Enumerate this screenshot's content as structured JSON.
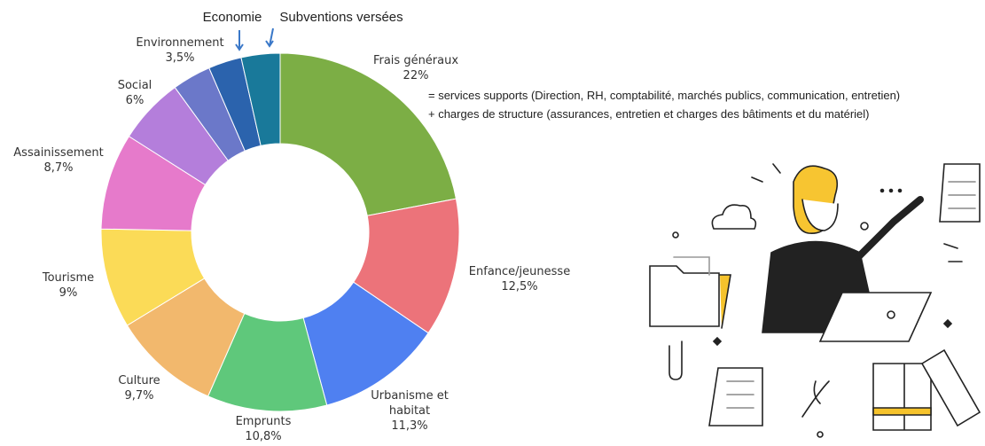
{
  "chart_data": {
    "type": "donut",
    "categories": [
      "Frais généraux",
      "Enfance/jeunesse",
      "Urbanisme et habitat",
      "Emprunts",
      "Culture",
      "Tourisme",
      "Assainissement",
      "Social",
      "Environnement",
      "Economie",
      "Subventions versées"
    ],
    "values": [
      22,
      12.5,
      11.3,
      10.8,
      9.7,
      9,
      8.7,
      6,
      3.5,
      3,
      3.5
    ],
    "value_labels": [
      "22%",
      "12,5%",
      "11,3%",
      "10,8%",
      "9,7%",
      "9%",
      "8,7%",
      "6%",
      "3,5%",
      null,
      null
    ],
    "colors": [
      "#7cae45",
      "#ec737a",
      "#4f80f1",
      "#5fc87b",
      "#f2b86d",
      "#fbdb57",
      "#e67acb",
      "#b47edb",
      "#6b78c9",
      "#2b63ad",
      "#19799a"
    ],
    "annotations": [
      "= services supports (Direction, RH, comptabilité, marchés publics, communication, entretien)",
      "+ charges de structure (assurances, entretien et charges des bâtiments et du matériel)"
    ]
  }
}
